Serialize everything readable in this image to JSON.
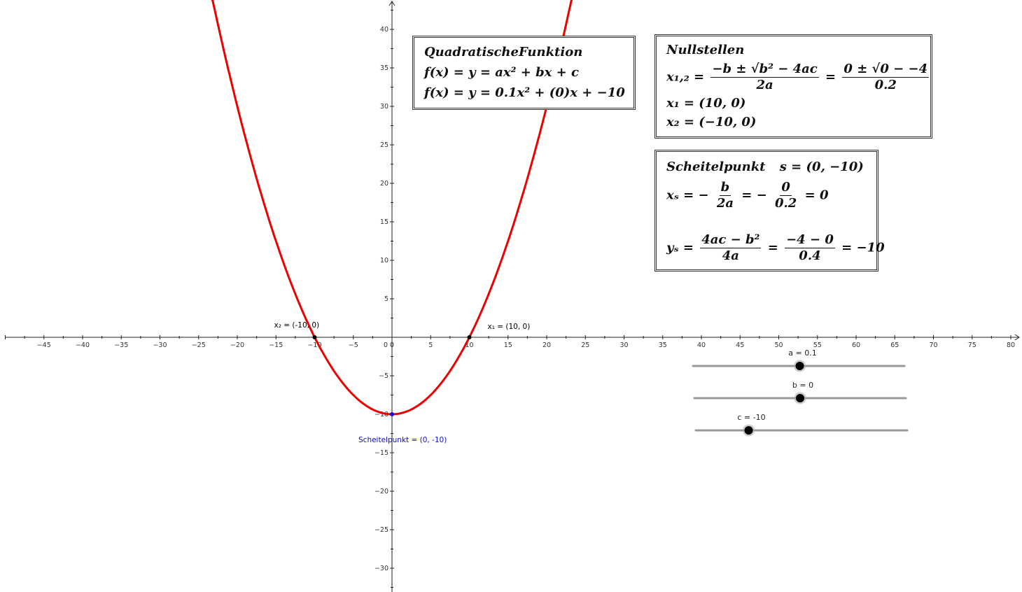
{
  "chart_data": {
    "type": "line",
    "function": {
      "a": 0.1,
      "b": 0,
      "c": -10
    },
    "xlim": [
      -50,
      81
    ],
    "ylim": [
      -33,
      44
    ],
    "x_ticks": [
      -45,
      -40,
      -35,
      -30,
      -25,
      -20,
      -15,
      -10,
      -5,
      0,
      5,
      10,
      15,
      20,
      25,
      30,
      35,
      40,
      45,
      50,
      55,
      60,
      65,
      70,
      75,
      80
    ],
    "y_ticks": [
      -30,
      -25,
      -20,
      -15,
      -10,
      -5,
      5,
      10,
      15,
      20,
      25,
      30,
      35,
      40
    ],
    "origin_label": "0",
    "curve_color": "#ee0000",
    "points": [
      {
        "label": "x₁ = (10, 0)",
        "x": 10,
        "y": 0,
        "color": "#000000"
      },
      {
        "label": "x₂ = (-10, 0)",
        "x": -10,
        "y": 0,
        "color": "#000000"
      },
      {
        "label": "Scheitelpunkt = (0, -10)",
        "x": 0,
        "y": -10,
        "color": "#1010cc"
      }
    ],
    "grid": false
  },
  "sliders": [
    {
      "label": "a = 0.1",
      "fraction": 0.505
    },
    {
      "label": "b = 0",
      "fraction": 0.5
    },
    {
      "label": "c = -10",
      "fraction": 0.25
    }
  ],
  "boxes": {
    "function": {
      "title": "QuadratischeFunktion",
      "general_lhs": "f(x) = y = ax² + bx + c",
      "specific": "f(x) = y = 0.1x² + (0)x + −10"
    },
    "roots": {
      "title": "Nullstellen",
      "x12_lhs": "x₁,₂ =",
      "x12_num": "−b ± √b² − 4ac",
      "x12_den": "2a",
      "x12_eq": "=",
      "x12_num2": "0 ± √0 − −4",
      "x12_den2": "0.2",
      "x1": "x₁ = (10, 0)",
      "x2": "x₂ = (−10, 0)"
    },
    "vertex": {
      "title": "Scheitelpunkt",
      "s": "s = (0, −10)",
      "xs_lhs": "xₛ = −",
      "xs_num": "b",
      "xs_den": "2a",
      "xs_mid": "= −",
      "xs_num2": "0",
      "xs_den2": "0.2",
      "xs_res": "= 0",
      "ys_lhs": "yₛ =",
      "ys_num": "4ac − b²",
      "ys_den": "4a",
      "ys_mid": "=",
      "ys_num2": "−4 − 0",
      "ys_den2": "0.4",
      "ys_res": "= −10"
    }
  }
}
